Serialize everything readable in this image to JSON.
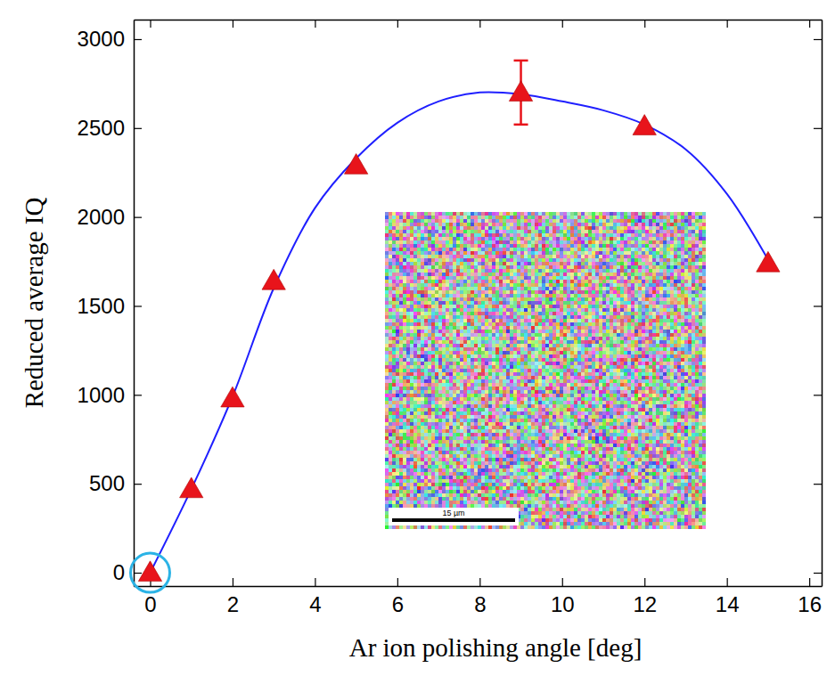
{
  "chart_data": {
    "type": "scatter",
    "xlabel": "Ar ion polishing angle [deg]",
    "ylabel": "Reduced average IQ",
    "xlim": [
      -0.4,
      16.3
    ],
    "ylim": [
      -75,
      3110
    ],
    "xticks": [
      0,
      2,
      4,
      6,
      8,
      10,
      12,
      14,
      16
    ],
    "yticks": [
      0,
      500,
      1000,
      1500,
      2000,
      2500,
      3000
    ],
    "series": [
      {
        "type": "scatter",
        "marker": "triangle",
        "color": "#e8141b",
        "x": [
          0,
          1,
          2,
          3,
          5,
          9,
          12,
          15
        ],
        "values": [
          0,
          470,
          980,
          1640,
          2290,
          2700,
          2510,
          1740
        ],
        "errors": [
          null,
          null,
          null,
          null,
          null,
          180,
          null,
          null
        ]
      },
      {
        "type": "line",
        "line_style": "solid",
        "color": "#1f1fff",
        "x": [
          0,
          1,
          2,
          3,
          4,
          5,
          6,
          7,
          8,
          9,
          10,
          11,
          12,
          13,
          14,
          15
        ],
        "values": [
          0,
          470,
          990,
          1600,
          2050,
          2330,
          2530,
          2650,
          2700,
          2690,
          2650,
          2600,
          2520,
          2380,
          2130,
          1760
        ]
      }
    ],
    "inset_scale_label": "15 µm"
  }
}
